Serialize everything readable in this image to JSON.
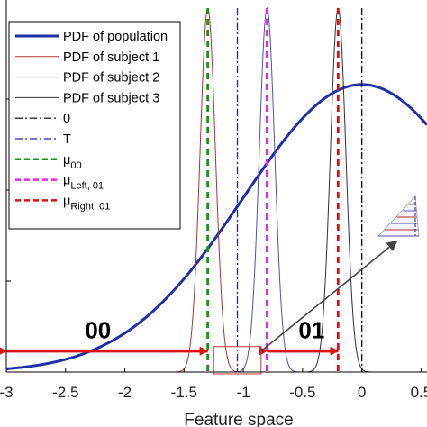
{
  "chart_data": {
    "type": "line",
    "xlabel": "Feature space",
    "ylabel": "",
    "xlim": [
      -3,
      0.55
    ],
    "ylim": [
      0,
      1.0
    ],
    "x_ticks": [
      {
        "v": -3,
        "label": "-3"
      },
      {
        "v": -2.5,
        "label": "-2.5"
      },
      {
        "v": -2,
        "label": "-2"
      },
      {
        "v": -1.5,
        "label": "-1.5"
      },
      {
        "v": -1,
        "label": "-1"
      },
      {
        "v": -0.5,
        "label": "-0.5"
      },
      {
        "v": 0,
        "label": "0"
      },
      {
        "v": 0.5,
        "label": "0.5"
      }
    ],
    "series": [
      {
        "name": "PDF of population",
        "kind": "gaussian",
        "mean": 0.0,
        "sd": 1.0,
        "peak": 0.79,
        "color": "#1f2fa8",
        "width": 3
      },
      {
        "name": "PDF of subject 1",
        "kind": "gaussian",
        "mean": -1.3,
        "sd": 0.065,
        "peak": 1.0,
        "color": "#b03030",
        "width": 1
      },
      {
        "name": "PDF of subject 2",
        "kind": "gaussian",
        "mean": -0.8,
        "sd": 0.065,
        "peak": 1.0,
        "color": "#5050b0",
        "width": 1
      },
      {
        "name": "PDF of subject 3",
        "kind": "gaussian",
        "mean": -0.2,
        "sd": 0.065,
        "peak": 1.0,
        "color": "#303030",
        "width": 1
      }
    ],
    "vlines": [
      {
        "name": "0",
        "x": 0.0,
        "color": "#000000",
        "dash": "dashdot"
      },
      {
        "name": "T",
        "x": -1.05,
        "color": "#2020b0",
        "dash": "dashdot"
      },
      {
        "name": "μ00",
        "x": -1.3,
        "color": "#119911",
        "dash": "dash"
      },
      {
        "name": "μLeft, 01",
        "x": -0.8,
        "color": "#ee22ee",
        "dash": "dash"
      },
      {
        "name": "μRight, 01",
        "x": -0.2,
        "color": "#dd1111",
        "dash": "dash"
      }
    ],
    "legend": {
      "position": "top-left",
      "entries": [
        {
          "label": "PDF of population",
          "color": "#1f2fa8",
          "style": "solid",
          "width": 3
        },
        {
          "label": "PDF of subject 1",
          "color": "#b03030",
          "style": "solid",
          "width": 1
        },
        {
          "label": "PDF of subject 2",
          "color": "#5050b0",
          "style": "solid",
          "width": 1
        },
        {
          "label": "PDF of subject 3",
          "color": "#303030",
          "style": "solid",
          "width": 1
        },
        {
          "label": "0",
          "color": "#000000",
          "style": "dashdot",
          "width": 1.2
        },
        {
          "label": "T",
          "color": "#2020b0",
          "style": "dashdot",
          "width": 1.2
        },
        {
          "label": "μ",
          "sub": "00",
          "color": "#119911",
          "style": "dash",
          "width": 2.5
        },
        {
          "label": "μ",
          "sub": "Left, 01",
          "color": "#ee22ee",
          "style": "dash",
          "width": 2.5
        },
        {
          "label": "μ",
          "sub": "Right, 01",
          "color": "#dd1111",
          "style": "dash",
          "width": 2.5
        }
      ]
    },
    "annotations": [
      {
        "label": "00",
        "from": -3.0,
        "to": -1.3,
        "y": 0.08,
        "color": "#dd1111"
      },
      {
        "label": "01",
        "from": -0.8,
        "to": -0.2,
        "y": 0.08,
        "color": "#dd1111"
      }
    ],
    "zoom_box": {
      "x0": -1.25,
      "x1": -0.85,
      "y0": 0.0,
      "y1": 0.06,
      "color": "#c03030"
    }
  }
}
